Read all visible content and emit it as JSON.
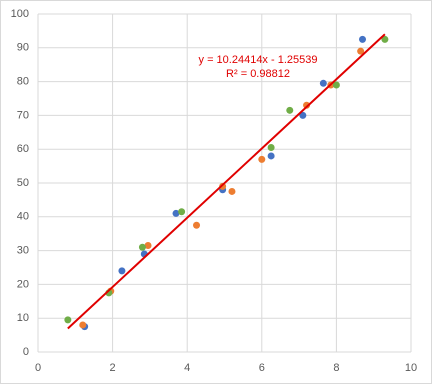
{
  "chart_data": {
    "type": "scatter",
    "series": [
      {
        "color": "#4472c4",
        "x": [
          1.25,
          2.25,
          2.85,
          3.7,
          4.95,
          6.25,
          7.1,
          7.65,
          8.7
        ],
        "values": [
          7.5,
          24,
          29,
          41,
          48,
          58,
          70,
          79.5,
          92.5
        ]
      },
      {
        "color": "#ed7d31",
        "x": [
          1.2,
          1.95,
          2.95,
          4.25,
          4.95,
          5.2,
          6.0,
          7.2,
          7.85,
          8.65
        ],
        "values": [
          8,
          18,
          31.5,
          37.5,
          49,
          47.5,
          57,
          73,
          79,
          89
        ]
      },
      {
        "color": "#70ad47",
        "x": [
          0.8,
          1.9,
          2.8,
          3.85,
          6.25,
          6.75,
          8.0,
          9.3
        ],
        "values": [
          9.5,
          17.5,
          31,
          41.5,
          60.5,
          71.5,
          79,
          92.5
        ]
      }
    ],
    "trendline": {
      "equation": "y = 10.24414x - 1.25539",
      "r_squared": "R² = 0.98812",
      "slope": 10.24414,
      "intercept": -1.25539,
      "xrange": [
        0.8,
        9.3
      ],
      "color": "#e00000"
    },
    "xlim": [
      0,
      10
    ],
    "xticks": [
      0,
      2,
      4,
      6,
      8,
      10
    ],
    "ylim": [
      0,
      100
    ],
    "yticks": [
      0,
      10,
      20,
      30,
      40,
      50,
      60,
      70,
      80,
      90,
      100
    ],
    "grid": true
  }
}
